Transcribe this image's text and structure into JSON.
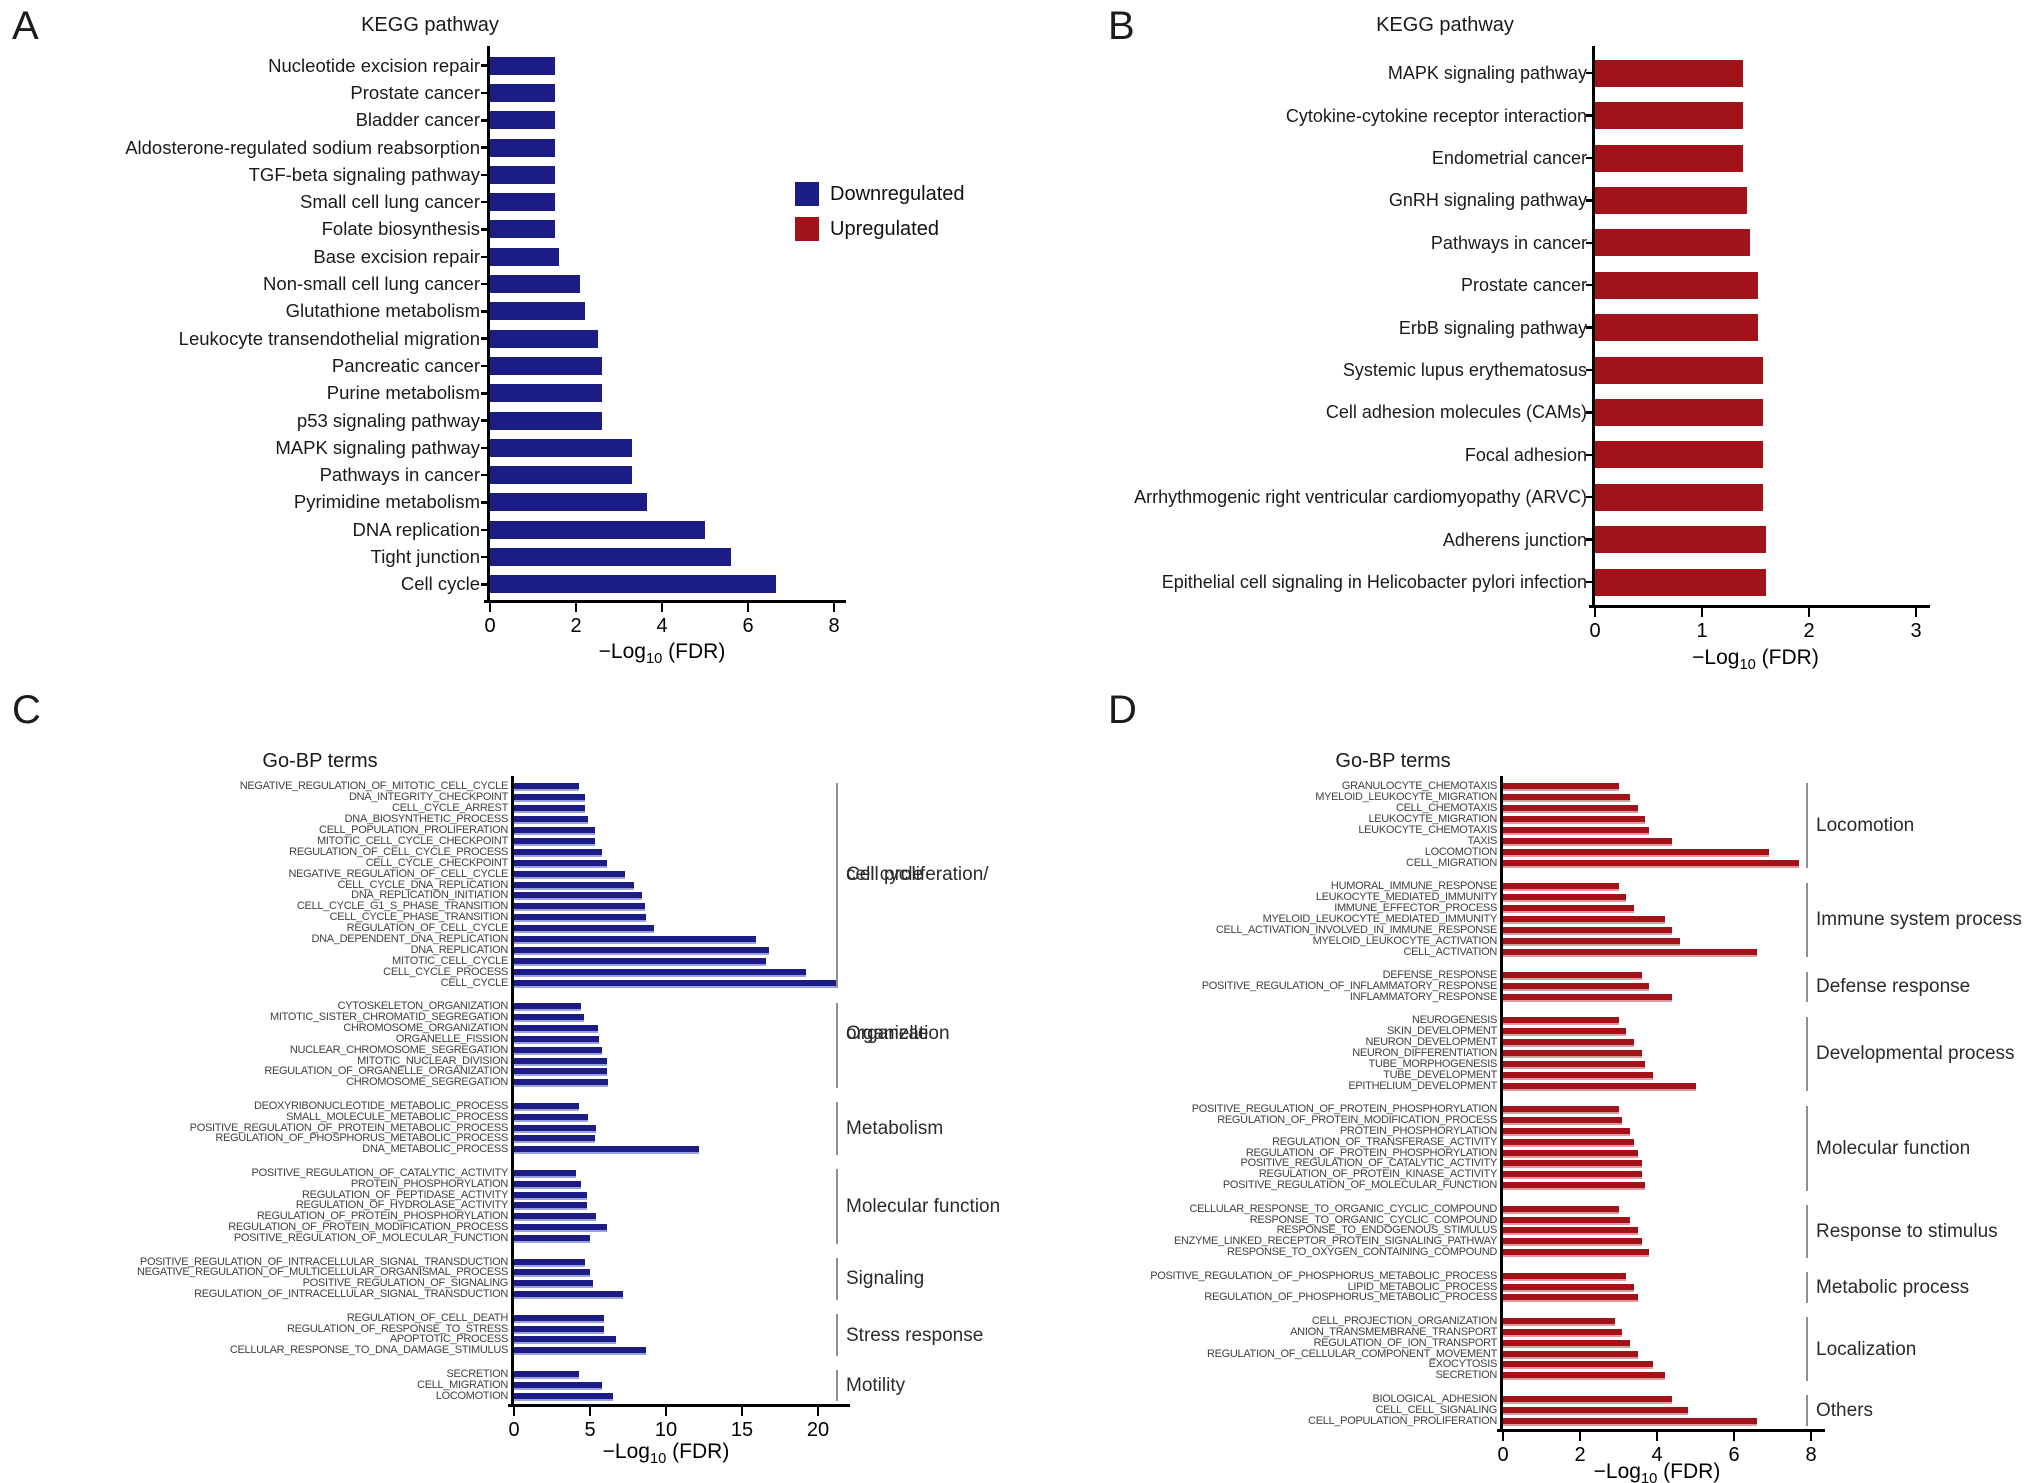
{
  "axis_label": {
    "pre": "−Log",
    "sub": "10",
    "post": " (FDR)"
  },
  "legend": {
    "items": [
      {
        "label": "Downregulated",
        "color": "#1c1c87"
      },
      {
        "label": "Upregulated",
        "color": "#a21219"
      }
    ]
  },
  "chart_data": [
    {
      "id": "A",
      "letter": "A",
      "type": "bar",
      "orientation": "horizontal",
      "title": "KEGG pathway",
      "regulation": "Downregulated",
      "color": "#1c1c87",
      "xlabel": "-Log10 (FDR)",
      "xlim": [
        0,
        8
      ],
      "xticks": [
        0,
        2,
        4,
        6,
        8
      ],
      "categories": [
        "Nucleotide excision repair",
        "Prostate cancer",
        "Bladder cancer",
        "Aldosterone-regulated sodium reabsorption",
        "TGF-beta signaling pathway",
        "Small cell lung cancer",
        "Folate biosynthesis",
        "Base excision repair",
        "Non-small cell lung cancer",
        "Glutathione metabolism",
        "Leukocyte transendothelial migration",
        "Pancreatic cancer",
        "Purine metabolism",
        "p53 signaling pathway",
        "MAPK signaling pathway",
        "Pathways in cancer",
        "Pyrimidine metabolism",
        "DNA replication",
        "Tight junction",
        "Cell cycle"
      ],
      "values": [
        1.5,
        1.5,
        1.5,
        1.5,
        1.5,
        1.5,
        1.5,
        1.6,
        2.1,
        2.2,
        2.5,
        2.6,
        2.6,
        2.6,
        3.3,
        3.3,
        3.65,
        5.0,
        5.6,
        6.65
      ]
    },
    {
      "id": "B",
      "letter": "B",
      "type": "bar",
      "orientation": "horizontal",
      "title": "KEGG pathway",
      "regulation": "Upregulated",
      "color": "#a21219",
      "xlabel": "-Log10 (FDR)",
      "xlim": [
        0,
        3
      ],
      "xticks": [
        0,
        1,
        2,
        3
      ],
      "categories": [
        "MAPK signaling pathway",
        "Cytokine-cytokine receptor interaction",
        "Endometrial cancer",
        "GnRH signaling pathway",
        "Pathways in cancer",
        "Prostate cancer",
        "ErbB signaling pathway",
        "Systemic lupus erythematosus",
        "Cell adhesion molecules (CAMs)",
        "Focal adhesion",
        "Arrhythmogenic right ventricular cardiomyopathy (ARVC)",
        "Adherens junction",
        "Epithelial cell signaling in Helicobacter pylori infection"
      ],
      "values": [
        1.38,
        1.38,
        1.38,
        1.42,
        1.45,
        1.52,
        1.52,
        1.57,
        1.57,
        1.57,
        1.57,
        1.6,
        1.6
      ]
    },
    {
      "id": "C",
      "letter": "C",
      "type": "bar",
      "orientation": "horizontal",
      "title": "Go-BP terms",
      "regulation": "Downregulated",
      "color": "#1c1c87",
      "xlabel": "-Log10 (FDR)",
      "xlim": [
        0,
        22
      ],
      "xticks": [
        0,
        5,
        10,
        15,
        20
      ],
      "groups": [
        {
          "label": [
            "Cell proliferation/",
            "cell cycle"
          ],
          "terms": [
            "NEGATIVE_REGULATION_OF_MITOTIC_CELL_CYCLE",
            "DNA_INTEGRITY_CHECKPOINT",
            "CELL_CYCLE_ARREST",
            "DNA_BIOSYNTHETIC_PROCESS",
            "CELL_POPULATION_PROLIFERATION",
            "MITOTIC_CELL_CYCLE_CHECKPOINT",
            "REGULATION_OF_CELL_CYCLE_PROCESS",
            "CELL_CYCLE_CHECKPOINT",
            "NEGATIVE_REGULATION_OF_CELL_CYCLE",
            "CELL_CYCLE_DNA_REPLICATION",
            "DNA_REPLICATION_INITIATION",
            "CELL_CYCLE_G1_S_PHASE_TRANSITION",
            "CELL_CYCLE_PHASE_TRANSITION",
            "REGULATION_OF_CELL_CYCLE",
            "DNA_DEPENDENT_DNA_REPLICATION",
            "DNA_REPLICATION",
            "MITOTIC_CELL_CYCLE",
            "CELL_CYCLE_PROCESS",
            "CELL_CYCLE"
          ],
          "values": [
            4.3,
            4.7,
            4.7,
            4.9,
            5.3,
            5.3,
            5.8,
            6.1,
            7.3,
            7.9,
            8.4,
            8.6,
            8.7,
            9.2,
            15.9,
            16.8,
            16.6,
            19.2,
            21.3
          ]
        },
        {
          "label": [
            "Organelle",
            "organization"
          ],
          "terms": [
            "CYTOSKELETON_ORGANIZATION",
            "MITOTIC_SISTER_CHROMATID_SEGREGATION",
            "CHROMOSOME_ORGANIZATION",
            "ORGANELLE_FISSION",
            "NUCLEAR_CHROMOSOME_SEGREGATION",
            "MITOTIC_NUCLEAR_DIVISION",
            "REGULATION_OF_ORGANELLE_ORGANIZATION",
            "CHROMOSOME_SEGREGATION"
          ],
          "values": [
            4.4,
            4.6,
            5.5,
            5.6,
            5.8,
            6.1,
            6.1,
            6.2
          ]
        },
        {
          "label": [
            "Metabolism"
          ],
          "terms": [
            "DEOXYRIBONUCLEOTIDE_METABOLIC_PROCESS",
            "SMALL_MOLECULE_METABOLIC_PROCESS",
            "POSITIVE_REGULATION_OF_PROTEIN_METABOLIC_PROCESS",
            "REGULATION_OF_PHOSPHORUS_METABOLIC_PROCESS",
            "DNA_METABOLIC_PROCESS"
          ],
          "values": [
            4.3,
            4.9,
            5.4,
            5.3,
            12.2
          ]
        },
        {
          "label": [
            "Molecular function"
          ],
          "terms": [
            "POSITIVE_REGULATION_OF_CATALYTIC_ACTIVITY",
            "PROTEIN_PHOSPHORYLATION",
            "REGULATION_OF_PEPTIDASE_ACTIVITY",
            "REGULATION_OF_HYDROLASE_ACTIVITY",
            "REGULATION_OF_PROTEIN_PHOSPHORYLATION",
            "REGULATION_OF_PROTEIN_MODIFICATION_PROCESS",
            "POSITIVE_REGULATION_OF_MOLECULAR_FUNCTION"
          ],
          "values": [
            4.1,
            4.4,
            4.8,
            4.8,
            5.4,
            6.1,
            5.0
          ]
        },
        {
          "label": [
            "Signaling"
          ],
          "terms": [
            "POSITIVE_REGULATION_OF_INTRACELLULAR_SIGNAL_TRANSDUCTION",
            "NEGATIVE_REGULATION_OF_MULTICELLULAR_ORGANISMAL_PROCESS",
            "POSITIVE_REGULATION_OF_SIGNALING",
            "REGULATION_OF_INTRACELLULAR_SIGNAL_TRANSDUCTION"
          ],
          "values": [
            4.7,
            5.0,
            5.2,
            7.2
          ]
        },
        {
          "label": [
            "Stress response"
          ],
          "terms": [
            "REGULATION_OF_CELL_DEATH",
            "REGULATION_OF_RESPONSE_TO_STRESS",
            "APOPTOTIC_PROCESS",
            "CELLULAR_RESPONSE_TO_DNA_DAMAGE_STIMULUS"
          ],
          "values": [
            5.9,
            5.9,
            6.7,
            8.7
          ]
        },
        {
          "label": [
            "Motility"
          ],
          "terms": [
            "SECRETION",
            "CELL_MIGRATION",
            "LOCOMOTION"
          ],
          "values": [
            4.3,
            5.8,
            6.5
          ]
        }
      ]
    },
    {
      "id": "D",
      "letter": "D",
      "type": "bar",
      "orientation": "horizontal",
      "title": "Go-BP terms",
      "regulation": "Upregulated",
      "color": "#a21219",
      "xlabel": "-Log10 (FDR)",
      "xlim": [
        0,
        8
      ],
      "xticks": [
        0,
        2,
        4,
        6,
        8
      ],
      "groups": [
        {
          "label": [
            "Locomotion"
          ],
          "terms": [
            "GRANULOCYTE_CHEMOTAXIS",
            "MYELOID_LEUKOCYTE_MIGRATION",
            "CELL_CHEMOTAXIS",
            "LEUKOCYTE_MIGRATION",
            "LEUKOCYTE_CHEMOTAXIS",
            "TAXIS",
            "LOCOMOTION",
            "CELL_MIGRATION"
          ],
          "values": [
            3.0,
            3.3,
            3.5,
            3.7,
            3.8,
            4.4,
            6.9,
            7.7
          ]
        },
        {
          "label": [
            "Immune system process"
          ],
          "terms": [
            "HUMORAL_IMMUNE_RESPONSE",
            "LEUKOCYTE_MEDIATED_IMMUNITY",
            "IMMUNE_EFFECTOR_PROCESS",
            "MYELOID_LEUKOCYTE_MEDIATED_IMMUNITY",
            "CELL_ACTIVATION_INVOLVED_IN_IMMUNE_RESPONSE",
            "MYELOID_LEUKOCYTE_ACTIVATION",
            "CELL_ACTIVATION"
          ],
          "values": [
            3.0,
            3.2,
            3.4,
            4.2,
            4.4,
            4.6,
            6.6
          ]
        },
        {
          "label": [
            "Defense response"
          ],
          "terms": [
            "DEFENSE_RESPONSE",
            "POSITIVE_REGULATION_OF_INFLAMMATORY_RESPONSE",
            "INFLAMMATORY_RESPONSE"
          ],
          "values": [
            3.6,
            3.8,
            4.4
          ]
        },
        {
          "label": [
            "Developmental process"
          ],
          "terms": [
            "NEUROGENESIS",
            "SKIN_DEVELOPMENT",
            "NEURON_DEVELOPMENT",
            "NEURON_DIFFERENTIATION",
            "TUBE_MORPHOGENESIS",
            "TUBE_DEVELOPMENT",
            "EPITHELIUM_DEVELOPMENT"
          ],
          "values": [
            3.0,
            3.2,
            3.4,
            3.6,
            3.7,
            3.9,
            5.0
          ]
        },
        {
          "label": [
            "Molecular function"
          ],
          "terms": [
            "POSITIVE_REGULATION_OF_PROTEIN_PHOSPHORYLATION",
            "REGULATION_OF_PROTEIN_MODIFICATION_PROCESS",
            "PROTEIN_PHOSPHORYLATION",
            "REGULATION_OF_TRANSFERASE_ACTIVITY",
            "REGULATION_OF_PROTEIN_PHOSPHORYLATION",
            "POSITIVE_REGULATION_OF_CATALYTIC_ACTIVITY",
            "REGULATION_OF_PROTEIN_KINASE_ACTIVITY",
            "POSITIVE_REGULATION_OF_MOLECULAR_FUNCTION"
          ],
          "values": [
            3.0,
            3.1,
            3.3,
            3.4,
            3.5,
            3.6,
            3.6,
            3.7
          ]
        },
        {
          "label": [
            "Response to stimulus"
          ],
          "terms": [
            "CELLULAR_RESPONSE_TO_ORGANIC_CYCLIC_COMPOUND",
            "RESPONSE_TO_ORGANIC_CYCLIC_COMPOUND",
            "RESPONSE_TO_ENDOGENOUS_STIMULUS",
            "ENZYME_LINKED_RECEPTOR_PROTEIN_SIGNALING_PATHWAY",
            "RESPONSE_TO_OXYGEN_CONTAINING_COMPOUND"
          ],
          "values": [
            3.0,
            3.3,
            3.5,
            3.6,
            3.8
          ]
        },
        {
          "label": [
            "Metabolic process"
          ],
          "terms": [
            "POSITIVE_REGULATION_OF_PHOSPHORUS_METABOLIC_PROCESS",
            "LIPID_METABOLIC_PROCESS",
            "REGULATION_OF_PHOSPHORUS_METABOLIC_PROCESS"
          ],
          "values": [
            3.2,
            3.4,
            3.5
          ]
        },
        {
          "label": [
            "Localization"
          ],
          "terms": [
            "CELL_PROJECTION_ORGANIZATION",
            "ANION_TRANSMEMBRANE_TRANSPORT",
            "REGULATION_OF_ION_TRANSPORT",
            "REGULATION_OF_CELLULAR_COMPONENT_MOVEMENT",
            "EXOCYTOSIS",
            "SECRETION"
          ],
          "values": [
            2.9,
            3.1,
            3.3,
            3.5,
            3.9,
            4.2
          ]
        },
        {
          "label": [
            "Others"
          ],
          "terms": [
            "BIOLOGICAL_ADHESION",
            "CELL_CELL_SIGNALING",
            "CELL_POPULATION_PROLIFERATION"
          ],
          "values": [
            4.4,
            4.8,
            6.6
          ]
        }
      ]
    }
  ]
}
